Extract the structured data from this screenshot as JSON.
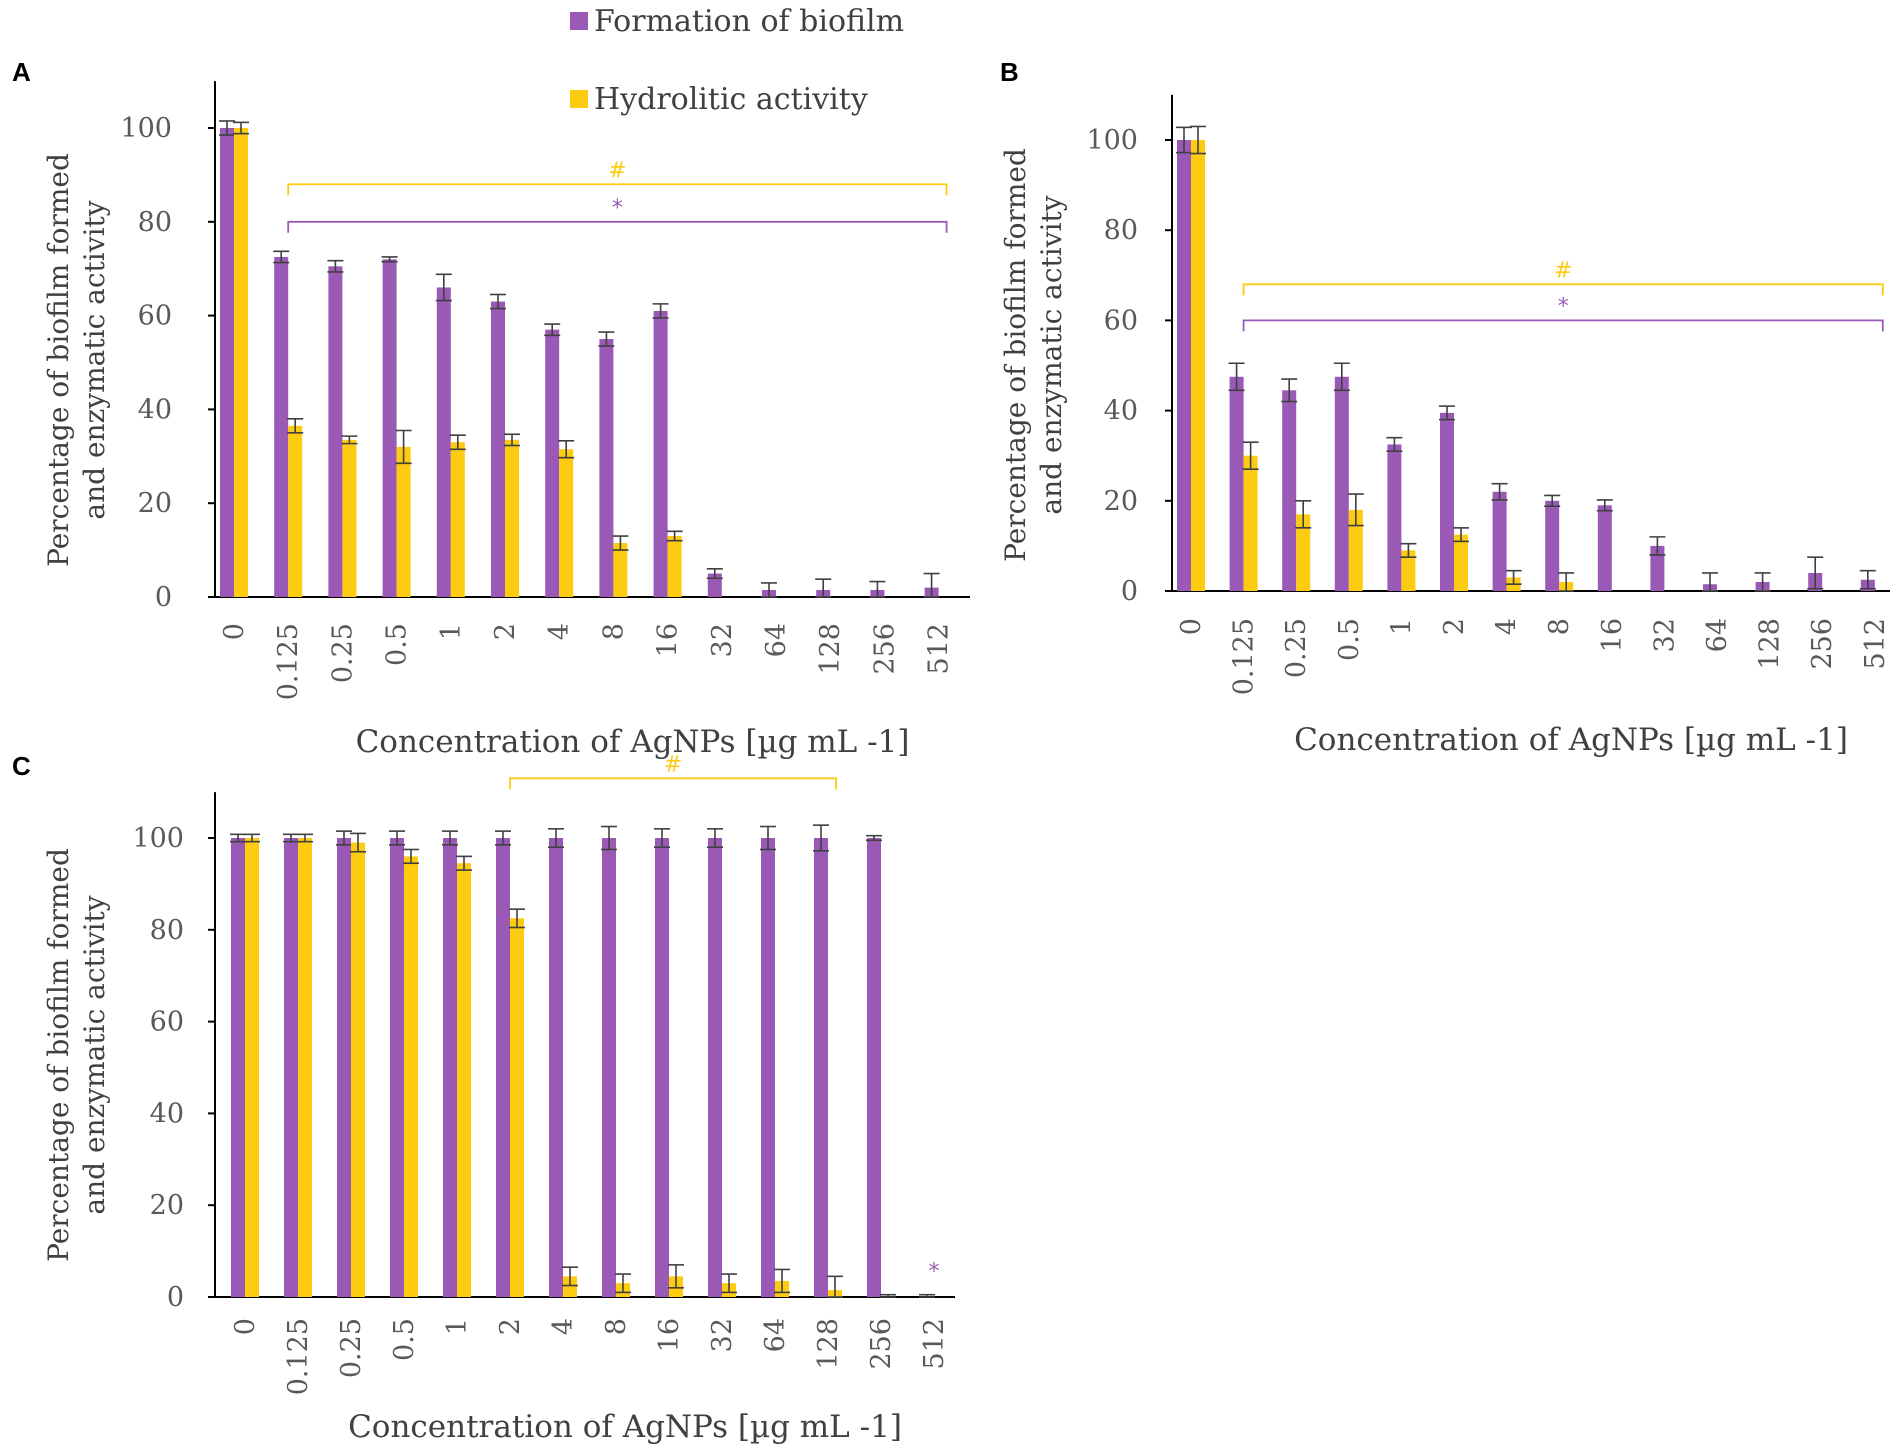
{
  "colors": {
    "biofilm": "#9B59B6",
    "hydrolitic": "#FDCB10",
    "axis": "#000000",
    "errorbar": "#404040",
    "text": "#595959"
  },
  "legend": {
    "biofilm": "Formation of biofilm",
    "hydrolitic": "Hydrolitic activity"
  },
  "chart_data": [
    {
      "panel": "A",
      "type": "bar",
      "title": "",
      "xlabel": "Concentration of AgNPs [µg mL -1]",
      "ylabel_lines": [
        "Percentage of biofilm formed",
        "and enzymatic activity"
      ],
      "ylim": [
        0,
        110
      ],
      "yticks": [
        "0",
        "20",
        "40",
        "60",
        "80",
        "100"
      ],
      "categories": [
        "0",
        "0.125",
        "0.25",
        "0.5",
        "1",
        "2",
        "4",
        "8",
        "16",
        "32",
        "64",
        "128",
        "256",
        "512"
      ],
      "series": [
        {
          "name": "Formation of biofilm",
          "values": [
            100,
            72.5,
            70.5,
            72,
            66,
            63,
            57,
            55,
            61,
            5,
            1.5,
            1.5,
            1.5,
            2
          ],
          "errors": [
            1.5,
            1.2,
            1.2,
            0.5,
            2.8,
            1.5,
            1.2,
            1.5,
            1.5,
            1,
            1.5,
            2.3,
            1.8,
            3
          ]
        },
        {
          "name": "Hydrolitic activity",
          "values": [
            100,
            36.5,
            33.5,
            32,
            33,
            33.5,
            31.5,
            11.5,
            13,
            0,
            0,
            0,
            0,
            0
          ],
          "errors": [
            1.2,
            1.5,
            0.8,
            3.5,
            1.5,
            1.2,
            1.8,
            1.5,
            1,
            0,
            0,
            0,
            0,
            0
          ]
        }
      ],
      "significance": [
        {
          "symbol": "#",
          "series": "Hydrolitic activity",
          "from": "0.125",
          "to": "512",
          "level": 88
        },
        {
          "symbol": "*",
          "series": "Formation of biofilm",
          "from": "0.125",
          "to": "512",
          "level": 80
        }
      ]
    },
    {
      "panel": "B",
      "type": "bar",
      "title": "",
      "xlabel": "Concentration of AgNPs [µg mL -1]",
      "ylabel_lines": [
        "Percentage of biofilm formed",
        "and enzymatic activity"
      ],
      "ylim": [
        0,
        110
      ],
      "yticks": [
        "0",
        "20",
        "40",
        "60",
        "80",
        "100"
      ],
      "categories": [
        "0",
        "0.125",
        "0.25",
        "0.5",
        "1",
        "2",
        "4",
        "8",
        "16",
        "32",
        "64",
        "128",
        "256",
        "512"
      ],
      "series": [
        {
          "name": "Formation of biofilm",
          "values": [
            100,
            47.5,
            44.5,
            47.5,
            32.5,
            39.5,
            22,
            20,
            19,
            10,
            1.5,
            2,
            4,
            2.5
          ],
          "errors": [
            2.8,
            3,
            2.5,
            3,
            1.5,
            1.5,
            1.8,
            1.2,
            1.2,
            2,
            2.5,
            2,
            3.5,
            2
          ]
        },
        {
          "name": "Hydrolitic activity",
          "values": [
            100,
            30,
            17,
            18,
            9,
            12.5,
            3,
            2,
            0,
            0,
            0,
            0,
            0,
            0
          ],
          "errors": [
            3,
            3,
            3,
            3.5,
            1.5,
            1.5,
            1.5,
            2,
            0,
            0,
            0,
            0,
            0,
            0
          ]
        }
      ],
      "significance": [
        {
          "symbol": "#",
          "series": "Hydrolitic activity",
          "from": "0.125",
          "to": "512",
          "level": 68
        },
        {
          "symbol": "*",
          "series": "Formation of biofilm",
          "from": "0.125",
          "to": "512",
          "level": 60
        }
      ]
    },
    {
      "panel": "C",
      "type": "bar",
      "title": "",
      "xlabel": "Concentration of AgNPs [µg mL -1]",
      "ylabel_lines": [
        "Percentage of biofilm formed",
        "and enzymatic activity"
      ],
      "ylim": [
        0,
        110
      ],
      "yticks": [
        "0",
        "20",
        "40",
        "60",
        "80",
        "100"
      ],
      "categories": [
        "0",
        "0.125",
        "0.25",
        "0.5",
        "1",
        "2",
        "4",
        "8",
        "16",
        "32",
        "64",
        "128",
        "256",
        "512"
      ],
      "series": [
        {
          "name": "Formation of biofilm",
          "values": [
            100,
            100,
            100,
            100,
            100,
            100,
            100,
            100,
            100,
            100,
            100,
            100,
            100,
            0
          ],
          "errors": [
            0.8,
            0.8,
            1.5,
            1.5,
            1.5,
            1.5,
            2,
            2.5,
            2,
            2,
            2.5,
            2.8,
            0.5,
            0.5
          ]
        },
        {
          "name": "Hydrolitic activity",
          "values": [
            100,
            100,
            99,
            96,
            94.5,
            82.5,
            4.5,
            3,
            4.5,
            3,
            3.5,
            1.5,
            0,
            0
          ],
          "errors": [
            0.8,
            0.8,
            2,
            1.5,
            1.5,
            2,
            2,
            2,
            2.5,
            2,
            2.5,
            3,
            0.5,
            0
          ]
        }
      ],
      "significance": [
        {
          "symbol": "#",
          "series": "Hydrolitic activity",
          "from": "2",
          "to": "128",
          "level": 113
        },
        {
          "symbol": "*",
          "series": "Formation of biofilm",
          "at": "512",
          "level": 4
        }
      ]
    }
  ]
}
